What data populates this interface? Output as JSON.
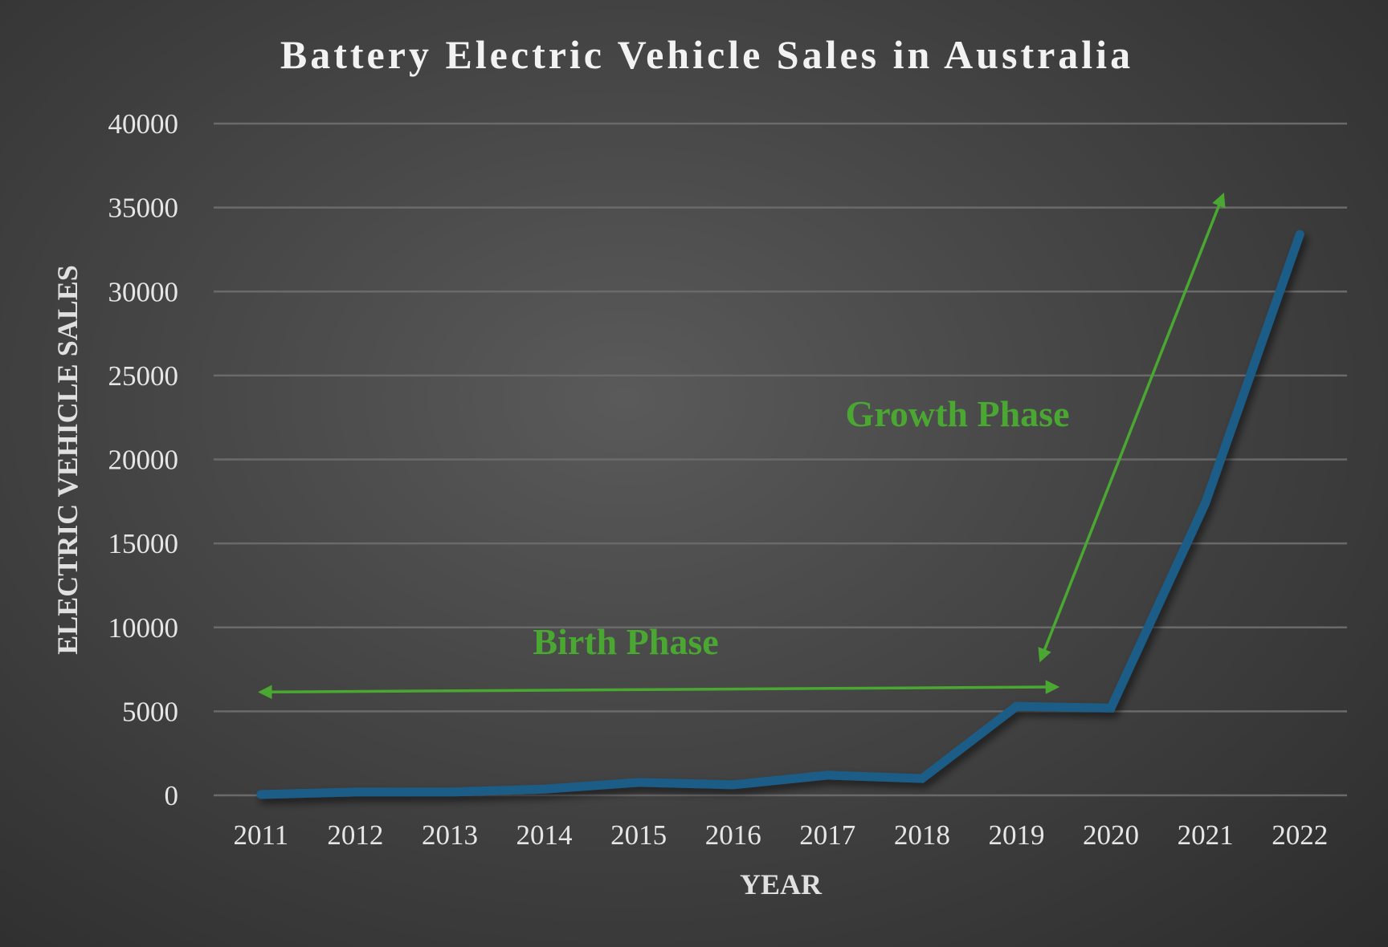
{
  "chart_data": {
    "type": "line",
    "title": "Battery Electric Vehicle Sales in Australia",
    "xlabel": "YEAR",
    "ylabel": "ELECTRIC VEHICLE SALES",
    "categories": [
      "2011",
      "2012",
      "2013",
      "2014",
      "2015",
      "2016",
      "2017",
      "2018",
      "2019",
      "2020",
      "2021",
      "2022"
    ],
    "series": [
      {
        "values": [
          50,
          200,
          200,
          370,
          770,
          630,
          1200,
          1000,
          5300,
          5200,
          17400,
          33400
        ],
        "color": "#1d5d87"
      }
    ],
    "ylim": [
      0,
      40000
    ],
    "yticks": [
      "0",
      "5000",
      "10000",
      "15000",
      "20000",
      "25000",
      "30000",
      "35000",
      "40000"
    ],
    "grid": true,
    "legend": "none",
    "annotations": [
      {
        "text": "Birth Phase",
        "color": "#4aa832",
        "arrow": "double-headed horizontal, 2011 to 2019"
      },
      {
        "text": "Growth Phase",
        "color": "#4aa832",
        "arrow": "double-headed diagonal, 2019 to 2021"
      }
    ]
  }
}
